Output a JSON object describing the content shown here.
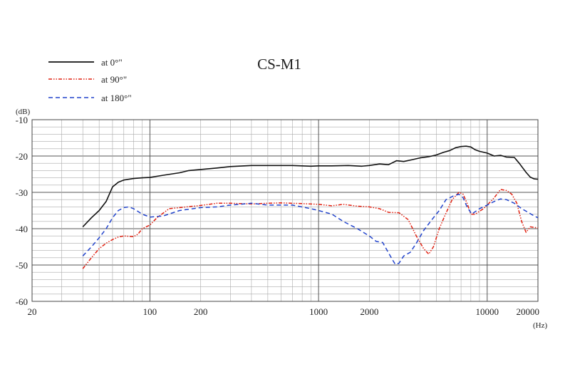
{
  "chart_data": {
    "type": "line",
    "title": "CS-M1",
    "xscale": "log",
    "xlabel": "",
    "ylabel": "",
    "x_unit": "(Hz)",
    "y_unit": "(dB)",
    "xlim": [
      20,
      20000
    ],
    "ylim": [
      -60,
      -10
    ],
    "grid": true,
    "legend_position": "top-left",
    "x_ticks": [
      {
        "value": 20,
        "label": "20"
      },
      {
        "value": 100,
        "label": "100"
      },
      {
        "value": 200,
        "label": "200"
      },
      {
        "value": 1000,
        "label": "1000"
      },
      {
        "value": 2000,
        "label": "2000"
      },
      {
        "value": 10000,
        "label": "10000"
      },
      {
        "value": 20000,
        "label": "20000"
      }
    ],
    "y_ticks": [
      {
        "value": -10,
        "label": "-10"
      },
      {
        "value": -20,
        "label": "-20"
      },
      {
        "value": -30,
        "label": "-30"
      },
      {
        "value": -40,
        "label": "-40"
      },
      {
        "value": -50,
        "label": "-50"
      },
      {
        "value": -60,
        "label": "-60"
      }
    ],
    "series": [
      {
        "name": "at 0°\"",
        "color": "#111111",
        "style": "solid",
        "points": [
          [
            40,
            -39.5
          ],
          [
            45,
            -37
          ],
          [
            50,
            -35
          ],
          [
            55,
            -32.5
          ],
          [
            60,
            -28.5
          ],
          [
            65,
            -27.2
          ],
          [
            70,
            -26.6
          ],
          [
            80,
            -26.2
          ],
          [
            90,
            -26
          ],
          [
            100,
            -25.9
          ],
          [
            120,
            -25.3
          ],
          [
            150,
            -24.6
          ],
          [
            170,
            -24
          ],
          [
            200,
            -23.7
          ],
          [
            250,
            -23.3
          ],
          [
            300,
            -22.9
          ],
          [
            400,
            -22.6
          ],
          [
            500,
            -22.6
          ],
          [
            700,
            -22.6
          ],
          [
            900,
            -22.8
          ],
          [
            1000,
            -22.7
          ],
          [
            1200,
            -22.7
          ],
          [
            1500,
            -22.6
          ],
          [
            1800,
            -22.8
          ],
          [
            2000,
            -22.6
          ],
          [
            2300,
            -22.2
          ],
          [
            2600,
            -22.4
          ],
          [
            2900,
            -21.3
          ],
          [
            3200,
            -21.5
          ],
          [
            3600,
            -21
          ],
          [
            4000,
            -20.5
          ],
          [
            4500,
            -20.2
          ],
          [
            5000,
            -19.7
          ],
          [
            5500,
            -19
          ],
          [
            6000,
            -18.5
          ],
          [
            6500,
            -17.7
          ],
          [
            7000,
            -17.4
          ],
          [
            7500,
            -17.3
          ],
          [
            8000,
            -17.5
          ],
          [
            8500,
            -18.3
          ],
          [
            9000,
            -18.7
          ],
          [
            10000,
            -19.2
          ],
          [
            11000,
            -20
          ],
          [
            12000,
            -19.8
          ],
          [
            13000,
            -20.3
          ],
          [
            14500,
            -20.4
          ],
          [
            15500,
            -22
          ],
          [
            17000,
            -24.5
          ],
          [
            18000,
            -25.8
          ],
          [
            19000,
            -26.3
          ],
          [
            20000,
            -26.4
          ]
        ]
      },
      {
        "name": "at 90°\"",
        "color": "#e02010",
        "style": "dashdot",
        "points": [
          [
            40,
            -51
          ],
          [
            45,
            -48
          ],
          [
            50,
            -45.5
          ],
          [
            55,
            -44
          ],
          [
            60,
            -43
          ],
          [
            65,
            -42.3
          ],
          [
            70,
            -42
          ],
          [
            80,
            -42.2
          ],
          [
            85,
            -41.5
          ],
          [
            90,
            -40
          ],
          [
            100,
            -39
          ],
          [
            110,
            -37
          ],
          [
            130,
            -34.5
          ],
          [
            150,
            -34.2
          ],
          [
            200,
            -33.6
          ],
          [
            250,
            -33
          ],
          [
            300,
            -33
          ],
          [
            400,
            -33.2
          ],
          [
            500,
            -33
          ],
          [
            600,
            -32.9
          ],
          [
            800,
            -33.1
          ],
          [
            1000,
            -33.3
          ],
          [
            1200,
            -33.7
          ],
          [
            1400,
            -33.3
          ],
          [
            1700,
            -33.8
          ],
          [
            2000,
            -34
          ],
          [
            2300,
            -34.5
          ],
          [
            2600,
            -35.5
          ],
          [
            3000,
            -35.6
          ],
          [
            3400,
            -37.5
          ],
          [
            3800,
            -42
          ],
          [
            4200,
            -45.5
          ],
          [
            4500,
            -47
          ],
          [
            4800,
            -45
          ],
          [
            5200,
            -40
          ],
          [
            5600,
            -36.5
          ],
          [
            6200,
            -32
          ],
          [
            6800,
            -30
          ],
          [
            7200,
            -30.5
          ],
          [
            7600,
            -33
          ],
          [
            8000,
            -36
          ],
          [
            8500,
            -36
          ],
          [
            9500,
            -34.5
          ],
          [
            10000,
            -33.5
          ],
          [
            11000,
            -31.5
          ],
          [
            12000,
            -29.2
          ],
          [
            13000,
            -29.5
          ],
          [
            14000,
            -30.5
          ],
          [
            15000,
            -33
          ],
          [
            16000,
            -38
          ],
          [
            17000,
            -41
          ],
          [
            18000,
            -39.5
          ],
          [
            20000,
            -39.8
          ]
        ]
      },
      {
        "name": "at 180°\"",
        "color": "#2244cc",
        "style": "dashed",
        "points": [
          [
            40,
            -47.5
          ],
          [
            45,
            -45
          ],
          [
            50,
            -42.5
          ],
          [
            55,
            -40
          ],
          [
            60,
            -37
          ],
          [
            65,
            -35
          ],
          [
            70,
            -34.2
          ],
          [
            75,
            -34
          ],
          [
            80,
            -34.5
          ],
          [
            90,
            -36
          ],
          [
            100,
            -36.8
          ],
          [
            120,
            -36.5
          ],
          [
            150,
            -35
          ],
          [
            200,
            -34.2
          ],
          [
            250,
            -34
          ],
          [
            300,
            -33.5
          ],
          [
            400,
            -33
          ],
          [
            500,
            -33.5
          ],
          [
            700,
            -33.5
          ],
          [
            900,
            -34.5
          ],
          [
            1000,
            -35
          ],
          [
            1200,
            -36
          ],
          [
            1400,
            -38
          ],
          [
            1700,
            -40
          ],
          [
            2000,
            -42
          ],
          [
            2200,
            -43.5
          ],
          [
            2400,
            -43.8
          ],
          [
            2700,
            -48
          ],
          [
            2850,
            -49.8
          ],
          [
            3000,
            -49.5
          ],
          [
            3200,
            -47.5
          ],
          [
            3500,
            -46.5
          ],
          [
            3800,
            -44
          ],
          [
            4200,
            -40.5
          ],
          [
            4700,
            -37.5
          ],
          [
            5200,
            -35
          ],
          [
            5700,
            -32
          ],
          [
            6300,
            -31
          ],
          [
            6800,
            -30.5
          ],
          [
            7200,
            -31.5
          ],
          [
            7600,
            -34
          ],
          [
            8100,
            -36
          ],
          [
            9000,
            -34.5
          ],
          [
            10000,
            -33.5
          ],
          [
            11000,
            -32.5
          ],
          [
            12000,
            -31.8
          ],
          [
            13000,
            -32
          ],
          [
            14500,
            -33
          ],
          [
            16000,
            -34.5
          ],
          [
            17500,
            -35.5
          ],
          [
            19000,
            -36.5
          ],
          [
            20000,
            -37
          ]
        ]
      }
    ]
  }
}
